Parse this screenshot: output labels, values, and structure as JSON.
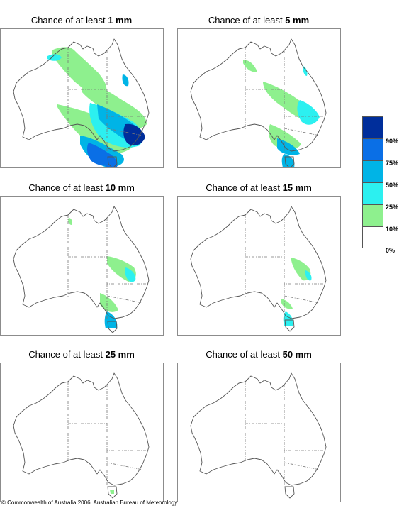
{
  "panels": [
    {
      "prefix": "Chance of at least ",
      "amount": "1 mm"
    },
    {
      "prefix": "Chance of at least ",
      "amount": "5 mm"
    },
    {
      "prefix": "Chance of at least ",
      "amount": "10 mm"
    },
    {
      "prefix": "Chance of at least ",
      "amount": "15 mm"
    },
    {
      "prefix": "Chance of at least ",
      "amount": "25 mm"
    },
    {
      "prefix": "Chance of at least ",
      "amount": "50 mm"
    }
  ],
  "legend": {
    "colors": [
      "#002e9b",
      "#0a6fe6",
      "#00b4e6",
      "#2cf0f0",
      "#8ef08e",
      "#ffffff"
    ],
    "labels": [
      "90%",
      "75%",
      "50%",
      "25%",
      "10%",
      "0%"
    ]
  },
  "copyright": "© Commonwealth of Australia 2006, Australian Bureau of Meteorology"
}
